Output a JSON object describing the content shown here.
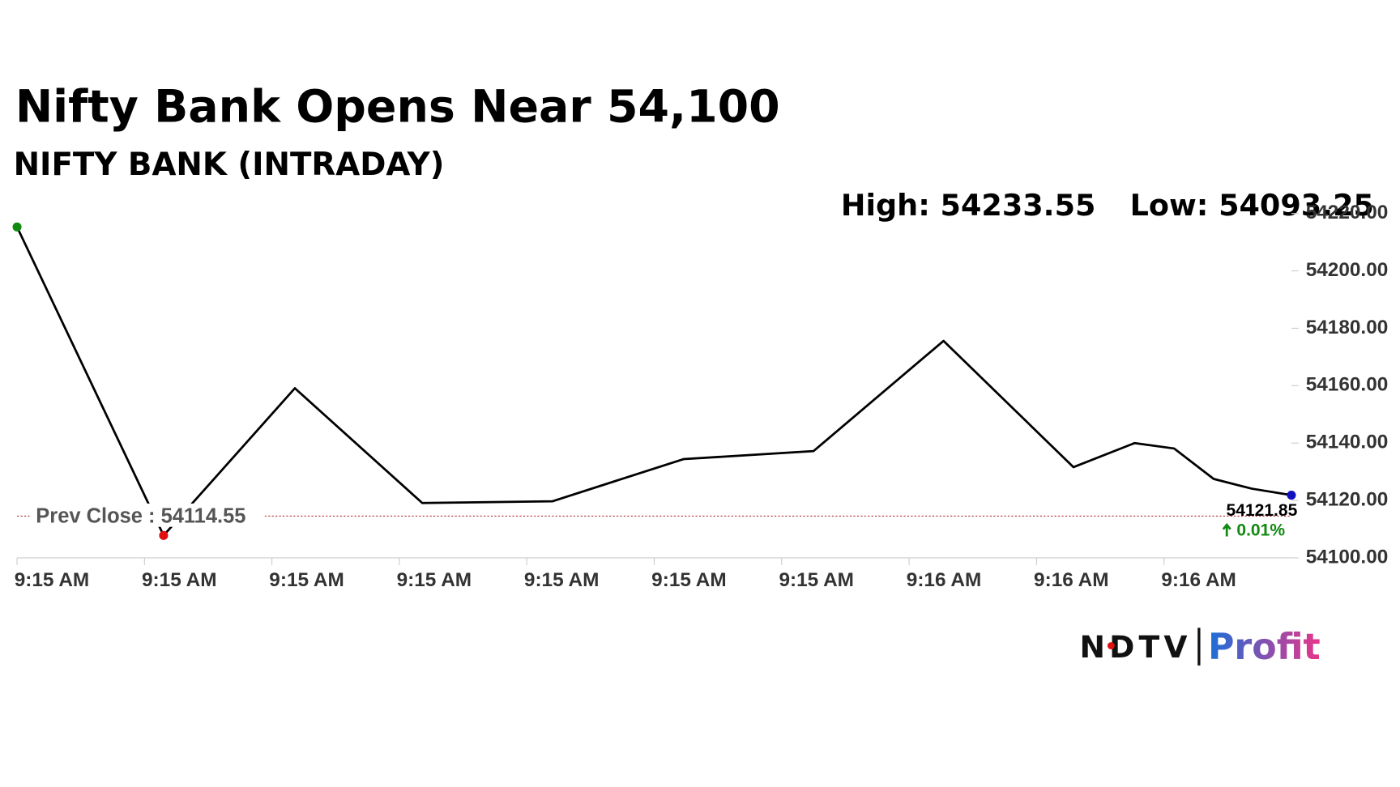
{
  "chart_data": {
    "type": "line",
    "title": "Nifty Bank Opens Near 54,100",
    "subtitle": "NIFTY BANK (INTRADAY)",
    "high_label": "High: 54233.55",
    "low_label": "Low: 54093.25",
    "x": [
      0,
      1.15,
      2.18,
      3.18,
      4.2,
      5.23,
      6.25,
      7.27,
      8.29,
      8.77,
      9.08,
      9.39,
      9.69,
      10
    ],
    "series": [
      {
        "name": "NIFTY BANK",
        "color": "#000000",
        "values": [
          54215.3,
          54107.8,
          54159.1,
          54119.1,
          54119.7,
          54134.4,
          54137.2,
          54175.6,
          54131.6,
          54140,
          54138.1,
          54127.5,
          54124.1,
          54121.85
        ]
      }
    ],
    "xlim": [
      0,
      10
    ],
    "xticks": [
      {
        "value": 0,
        "label": "9:15 AM"
      },
      {
        "value": 1,
        "label": "9:15 AM"
      },
      {
        "value": 2,
        "label": "9:15 AM"
      },
      {
        "value": 3,
        "label": "9:15 AM"
      },
      {
        "value": 4,
        "label": "9:15 AM"
      },
      {
        "value": 5,
        "label": "9:15 AM"
      },
      {
        "value": 6,
        "label": "9:15 AM"
      },
      {
        "value": 7,
        "label": "9:16 AM"
      },
      {
        "value": 8,
        "label": "9:16 AM"
      },
      {
        "value": 9,
        "label": "9:16 AM"
      }
    ],
    "ylim": [
      54100,
      54220
    ],
    "yticks": [
      {
        "value": 54100,
        "label": "54100.00"
      },
      {
        "value": 54120,
        "label": "54120.00"
      },
      {
        "value": 54140,
        "label": "54140.00"
      },
      {
        "value": 54160,
        "label": "54160.00"
      },
      {
        "value": 54180,
        "label": "54180.00"
      },
      {
        "value": 54200,
        "label": "54200.00"
      },
      {
        "value": 54220,
        "label": "54220.00"
      }
    ],
    "prev_close": {
      "value": 54114.55,
      "label": "Prev Close : 54114.55",
      "color": "#b03030"
    },
    "last": {
      "value": 54121.85,
      "label": "54121.85",
      "change": "0.01%",
      "change_color": "#118a11"
    },
    "markers": {
      "first": "#118a11",
      "low": "#e01010",
      "last": "#1010c0",
      "low_index": 1
    },
    "logo": {
      "left": "NDTV",
      "right": "Profit"
    }
  }
}
